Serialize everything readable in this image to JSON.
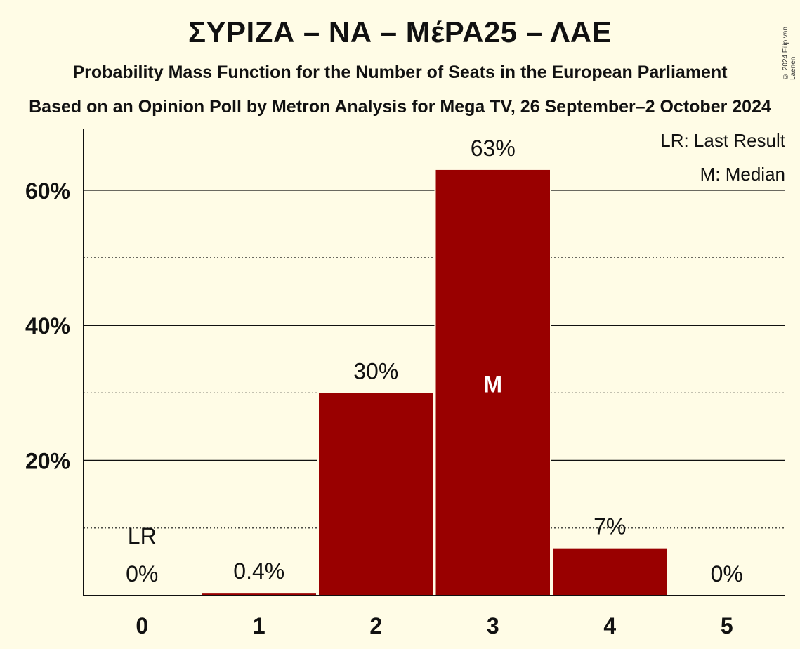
{
  "header": {
    "title": "ΣΥΡΙΖΑ – ΝΑ – ΜέΡΑ25 – ΛΑΕ",
    "subtitle": "Probability Mass Function for the Number of Seats in the European Parliament",
    "source": "Based on an Opinion Poll by Metron Analysis for Mega TV, 26 September–2 October 2024",
    "copyright": "© 2024 Filip van Laenen"
  },
  "legend": {
    "last_result": "LR: Last Result",
    "median": "M: Median"
  },
  "colors": {
    "bar": "#990000",
    "background": "#fffce6",
    "text": "#111111"
  },
  "chart_data": {
    "type": "bar",
    "categories": [
      "0",
      "1",
      "2",
      "3",
      "4",
      "5"
    ],
    "values": [
      0,
      0.4,
      30,
      63,
      7,
      0
    ],
    "data_labels": [
      "0%",
      "0.4%",
      "30%",
      "63%",
      "7%",
      "0%"
    ],
    "y_ticks": [
      20,
      40,
      60
    ],
    "y_tick_labels": [
      "20%",
      "40%",
      "60%"
    ],
    "ylim": [
      0,
      69
    ],
    "grid": "solid lines at 20% steps, dotted lines at 10% steps",
    "last_result_category": "0",
    "last_result_marker": "LR",
    "median_category": "3",
    "median_marker": "M",
    "legend_position": "top-right"
  }
}
